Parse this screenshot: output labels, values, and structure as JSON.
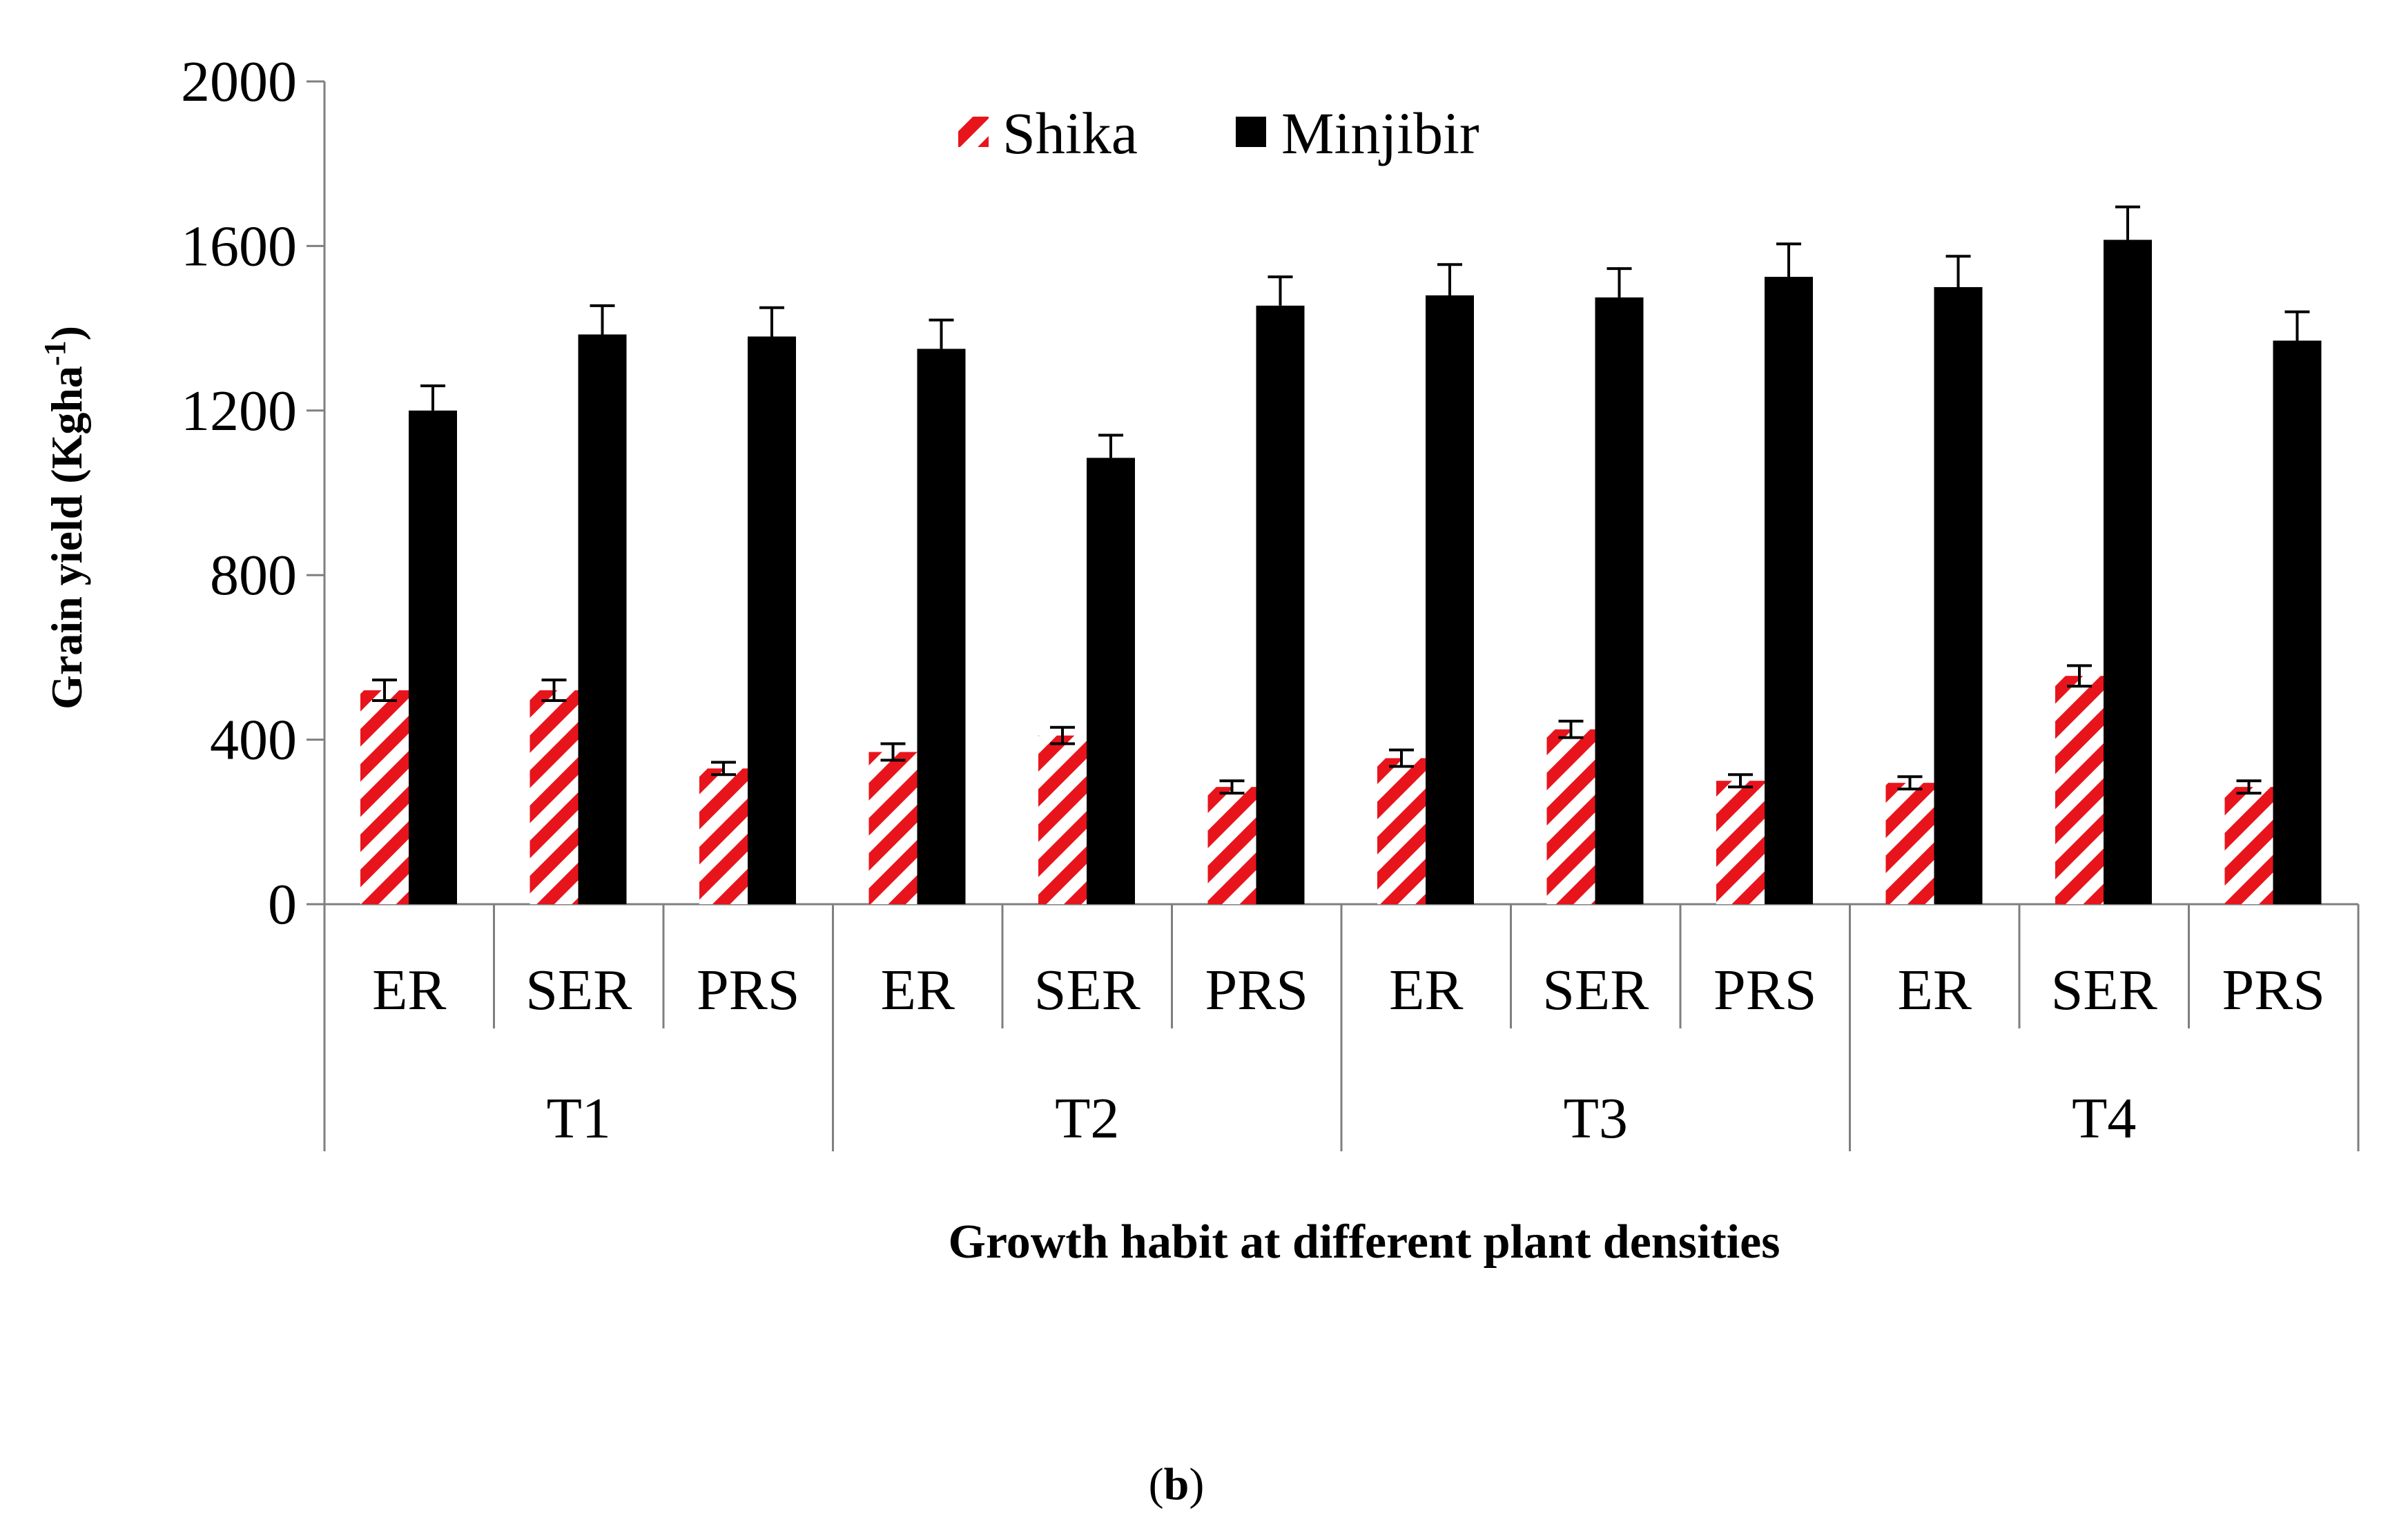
{
  "chart_data": {
    "type": "bar",
    "groups": [
      "T1",
      "T2",
      "T3",
      "T4"
    ],
    "subcategories": [
      "ER",
      "SER",
      "PRS"
    ],
    "categories": [
      "ER",
      "SER",
      "PRS",
      "ER",
      "SER",
      "PRS",
      "ER",
      "SER",
      "PRS",
      "ER",
      "SER",
      "PRS"
    ],
    "series": [
      {
        "name": "Shika",
        "values": [
          520,
          520,
          330,
          370,
          410,
          285,
          355,
          425,
          300,
          295,
          555,
          285
        ],
        "errors": [
          25,
          25,
          15,
          20,
          20,
          15,
          20,
          20,
          15,
          15,
          25,
          15
        ],
        "fill": "hatch",
        "color": "#e8141c"
      },
      {
        "name": "Minjibir",
        "values": [
          1200,
          1385,
          1380,
          1350,
          1085,
          1455,
          1480,
          1475,
          1525,
          1500,
          1615,
          1370
        ],
        "errors": [
          60,
          70,
          70,
          70,
          55,
          70,
          75,
          70,
          80,
          75,
          80,
          70
        ],
        "fill": "solid",
        "color": "#000000"
      }
    ],
    "yticks": [
      "0",
      "400",
      "800",
      "1200",
      "1600",
      "2000"
    ],
    "ylim": [
      0,
      2000
    ],
    "ylabel": "Grain yield (Kgha",
    "ylabel_sup": "-1",
    "ylabel_close": ")",
    "xlabel": "Growth habit at different plant densities",
    "legend_position": "top-center",
    "panel_label_open": "(",
    "panel_label_letter": "b",
    "panel_label_close": ")"
  }
}
